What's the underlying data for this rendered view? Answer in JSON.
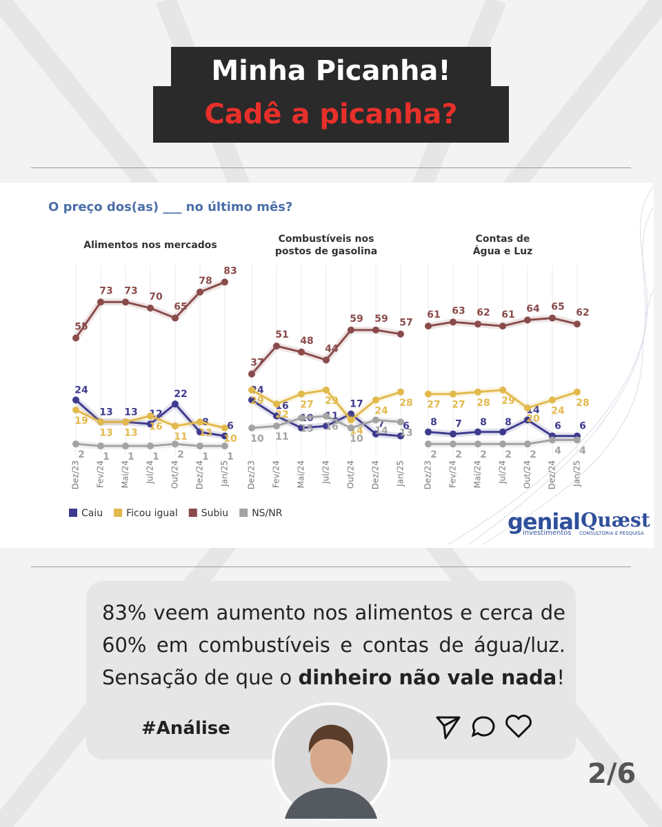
{
  "header": {
    "line1": "Minha Picanha!",
    "line2": "Cadê a picanha?"
  },
  "survey_question": "O preço dos(as) ___ no último mês?",
  "chart_data": [
    {
      "type": "line",
      "title": "Alimentos nos mercados",
      "categories": [
        "Dez/23",
        "Fev/24",
        "Mai/24",
        "Jul/24",
        "Out/24",
        "Dez/24",
        "Jan/25"
      ],
      "series": [
        {
          "name": "Caiu",
          "color": "#3e3a8e",
          "values": [
            24,
            13,
            13,
            12,
            22,
            8,
            6
          ]
        },
        {
          "name": "Ficou igual",
          "color": "#e2b94c",
          "values": [
            19,
            13,
            13,
            16,
            11,
            13,
            10
          ]
        },
        {
          "name": "Subiu",
          "color": "#8a4b4b",
          "values": [
            55,
            73,
            73,
            70,
            65,
            78,
            83
          ]
        },
        {
          "name": "NS/NR",
          "color": "#a3a3a3",
          "values": [
            2,
            1,
            1,
            1,
            2,
            1,
            1
          ]
        }
      ]
    },
    {
      "type": "line",
      "title": "Combustíveis nos\npostos de gasolina",
      "categories": [
        "Dez/23",
        "Fev/24",
        "Mai/24",
        "Jul/24",
        "Out/24",
        "Dez/24",
        "Jan/25"
      ],
      "series": [
        {
          "name": "Caiu",
          "color": "#3e3a8e",
          "values": [
            24,
            16,
            10,
            11,
            17,
            7,
            6
          ]
        },
        {
          "name": "Ficou igual",
          "color": "#e2b94c",
          "values": [
            29,
            22,
            27,
            29,
            14,
            24,
            28
          ]
        },
        {
          "name": "Subiu",
          "color": "#8a4b4b",
          "values": [
            37,
            51,
            48,
            44,
            59,
            59,
            57
          ]
        },
        {
          "name": "NS/NR",
          "color": "#a3a3a3",
          "values": [
            10,
            11,
            15,
            16,
            10,
            14,
            13
          ]
        }
      ]
    },
    {
      "type": "line",
      "title": "Contas de\nÁgua e Luz",
      "categories": [
        "Dez/23",
        "Fev/24",
        "Mai/24",
        "Jul/24",
        "Out/24",
        "Dez/24",
        "Jan/25"
      ],
      "series": [
        {
          "name": "Caiu",
          "color": "#3e3a8e",
          "values": [
            8,
            7,
            8,
            8,
            14,
            6,
            6
          ]
        },
        {
          "name": "Ficou igual",
          "color": "#e2b94c",
          "values": [
            27,
            27,
            28,
            29,
            20,
            24,
            28
          ]
        },
        {
          "name": "Subiu",
          "color": "#8a4b4b",
          "values": [
            61,
            63,
            62,
            61,
            64,
            65,
            62
          ]
        },
        {
          "name": "NS/NR",
          "color": "#a3a3a3",
          "values": [
            2,
            2,
            2,
            2,
            2,
            4,
            4
          ]
        }
      ]
    }
  ],
  "logos": [
    {
      "name": "genial",
      "sub": "investimentos"
    },
    {
      "name": "Quæst",
      "sub": "CONSULTORIA E PESQUISA"
    }
  ],
  "caption": {
    "before": "83% veem aumento nos alimentos e cerca de 60% em combustíveis e contas de água/luz. Sensação de que o ",
    "bold": "dinheiro não vale nada",
    "after": "!"
  },
  "hashtag": "#Análise",
  "page_number": "2/6"
}
